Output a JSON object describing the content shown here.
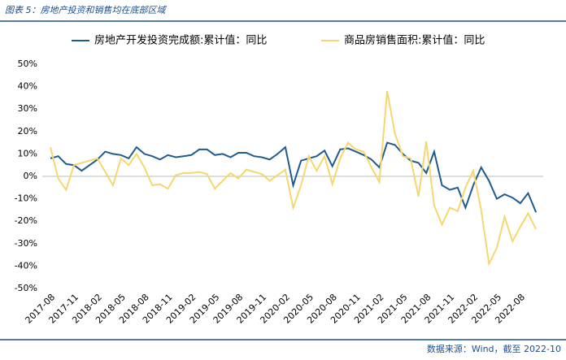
{
  "chart_data": {
    "type": "line",
    "title": "图表 5：房地产投资和销售均在底部区域",
    "source": "数据来源：Wind，截至 2022-10",
    "categories": [
      "2017-08",
      null,
      null,
      "2017-11",
      null,
      null,
      "2018-02",
      null,
      null,
      "2018-05",
      null,
      null,
      "2018-08",
      null,
      null,
      "2018-11",
      null,
      null,
      "2019-02",
      null,
      null,
      "2019-05",
      null,
      null,
      "2019-08",
      null,
      null,
      "2019-11",
      null,
      null,
      "2020-02",
      null,
      null,
      "2020-05",
      null,
      null,
      "2020-08",
      null,
      null,
      "2020-11",
      null,
      null,
      "2021-02",
      null,
      null,
      "2021-05",
      null,
      null,
      "2021-08",
      null,
      null,
      "2021-11",
      null,
      null,
      "2022-02",
      null,
      null,
      "2022-05",
      null,
      null,
      "2022-08",
      null,
      null
    ],
    "series": [
      {
        "name": "房地产开发投资完成额:累计值：同比",
        "color": "#1f5b8e",
        "values": [
          8,
          9,
          5.5,
          5,
          2.5,
          5,
          7.5,
          11,
          10,
          9.5,
          8,
          13,
          10,
          9,
          7.5,
          9.5,
          8.5,
          9,
          9.5,
          12,
          12,
          9.5,
          10,
          8.5,
          10.5,
          10.5,
          9,
          8.5,
          7.5,
          10,
          13,
          -4,
          7,
          8,
          9,
          11.5,
          4.5,
          12,
          12.5,
          11,
          9.5,
          7.5,
          4,
          15,
          14,
          10,
          7,
          6,
          1.5,
          11,
          -4,
          -6,
          -5,
          -14,
          -4,
          4,
          -2,
          -10,
          -8,
          -9.5,
          -12,
          -7.5,
          -16
        ]
      },
      {
        "name": "商品房销售面积:累计值：同比",
        "color": "#f5d76e",
        "values": [
          13,
          -1,
          -6,
          5,
          6,
          7,
          8,
          2,
          -4,
          8,
          5,
          10,
          4,
          -4,
          -3.5,
          -5.5,
          0.5,
          1.5,
          1.5,
          2,
          1,
          -5.5,
          -2,
          1.5,
          -1,
          3,
          2,
          1,
          -2,
          0.5,
          3,
          -14,
          -4,
          9,
          2.5,
          9,
          -3.5,
          8,
          15,
          12,
          11,
          4,
          -2.5,
          38,
          19,
          9,
          8,
          -9,
          15.5,
          -13,
          -21.5,
          -14,
          -15.5,
          -5,
          2.5,
          -15,
          -39,
          -32,
          -18,
          -29,
          -22.5,
          -16.5,
          -23.5
        ]
      }
    ],
    "ylim": [
      -50,
      50
    ],
    "yticks": [
      {
        "value": -50,
        "label": "-50%"
      },
      {
        "value": -40,
        "label": "-40%"
      },
      {
        "value": -30,
        "label": "-30%"
      },
      {
        "value": -20,
        "label": "-20%"
      },
      {
        "value": -10,
        "label": "-10%"
      },
      {
        "value": 0,
        "label": "0%"
      },
      {
        "value": 10,
        "label": "10%"
      },
      {
        "value": 20,
        "label": "20%"
      },
      {
        "value": 30,
        "label": "30%"
      },
      {
        "value": 40,
        "label": "40%"
      },
      {
        "value": 50,
        "label": "50%"
      }
    ],
    "grid": false,
    "legend": "top"
  }
}
